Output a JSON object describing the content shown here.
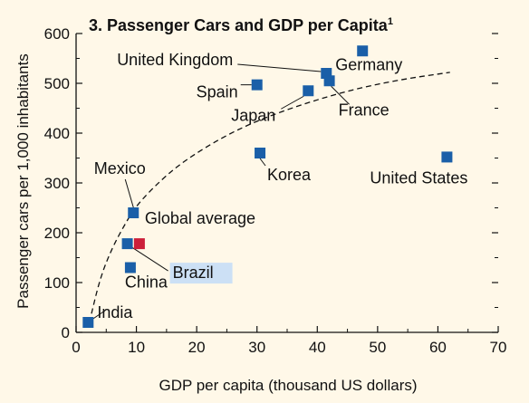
{
  "chart_data": {
    "type": "scatter",
    "title": "3. Passenger Cars and GDP per Capita",
    "title_superscript": "1",
    "xlabel": "GDP per capita (thousand US dollars)",
    "ylabel": "Passenger cars per 1,000 inhabitants",
    "xlim": [
      0,
      70
    ],
    "ylim": [
      0,
      600
    ],
    "xticks": [
      "0",
      "10",
      "20",
      "30",
      "40",
      "50",
      "60",
      "70"
    ],
    "yticks": [
      "0",
      "100",
      "200",
      "300",
      "400",
      "500",
      "600"
    ],
    "grid": false,
    "colors": {
      "country": "#1a5fa8",
      "global_average": "#cc1f3a",
      "highlight": "#cce0f5",
      "background": "#fff8e8"
    },
    "points": [
      {
        "label": "India",
        "x": 2,
        "y": 20,
        "color": "country"
      },
      {
        "label": "China",
        "x": 9,
        "y": 130,
        "color": "country"
      },
      {
        "label": "Brazil",
        "x": 8.5,
        "y": 178,
        "color": "country",
        "highlighted": true
      },
      {
        "label": "Global average",
        "x": 10.5,
        "y": 178,
        "color": "global_average"
      },
      {
        "label": "Mexico",
        "x": 9.5,
        "y": 240,
        "color": "country"
      },
      {
        "label": "Korea",
        "x": 30.5,
        "y": 360,
        "color": "country"
      },
      {
        "label": "Spain",
        "x": 30,
        "y": 497,
        "color": "country"
      },
      {
        "label": "Japan",
        "x": 38.5,
        "y": 485,
        "color": "country"
      },
      {
        "label": "United Kingdom",
        "x": 41.5,
        "y": 520,
        "color": "country"
      },
      {
        "label": "France",
        "x": 42,
        "y": 505,
        "color": "country"
      },
      {
        "label": "Germany",
        "x": 47.5,
        "y": 565,
        "color": "country"
      },
      {
        "label": "United States",
        "x": 61.5,
        "y": 352,
        "color": "country"
      }
    ],
    "trend_line": {
      "style": "dashed",
      "points": [
        [
          2.2,
          20
        ],
        [
          4,
          110
        ],
        [
          6,
          170
        ],
        [
          8,
          215
        ],
        [
          10,
          255
        ],
        [
          14,
          305
        ],
        [
          18,
          345
        ],
        [
          24,
          390
        ],
        [
          30,
          425
        ],
        [
          38,
          460
        ],
        [
          46,
          488
        ],
        [
          54,
          508
        ],
        [
          62,
          522
        ]
      ]
    }
  }
}
